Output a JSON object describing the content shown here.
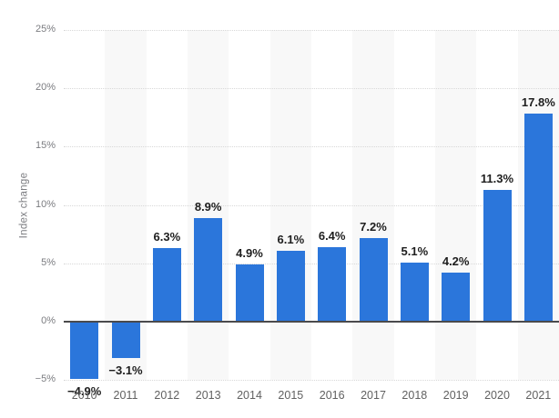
{
  "chart_data": {
    "type": "bar",
    "title": "",
    "xlabel": "",
    "ylabel": "Index change",
    "categories": [
      "2010",
      "2011",
      "2012",
      "2013",
      "2014",
      "2015",
      "2016",
      "2017",
      "2018",
      "2019",
      "2020",
      "2021"
    ],
    "values": [
      -4.9,
      -3.1,
      6.3,
      8.9,
      4.9,
      6.1,
      6.4,
      7.2,
      5.1,
      4.2,
      11.3,
      17.8
    ],
    "bar_labels": [
      "−4.9%",
      "−3.1%",
      "6.3%",
      "8.9%",
      "4.9%",
      "6.1%",
      "6.4%",
      "7.2%",
      "5.1%",
      "4.2%",
      "11.3%",
      "17.8%"
    ],
    "y_ticks": [
      {
        "value": 25,
        "label": "25%"
      },
      {
        "value": 20,
        "label": "20%"
      },
      {
        "value": 15,
        "label": "15%"
      },
      {
        "value": 10,
        "label": "10%"
      },
      {
        "value": 5,
        "label": "5%"
      },
      {
        "value": 0,
        "label": "0%"
      },
      {
        "value": -5,
        "label": "−5%"
      }
    ],
    "ylim": [
      -5,
      25
    ],
    "grid": "horizontal-dotted",
    "legend": "none",
    "band_pattern": "alternating vertical stripes on odd columns",
    "colors": {
      "bar": "#2b76db",
      "band": "#f8f8f8",
      "gridline": "#d8d8d8",
      "zero_line": "#4a4a4c",
      "value_label": "#1e1e1e",
      "tick_label": "#7b7c80",
      "year_label": "#616161",
      "background": "#ffffff"
    }
  }
}
